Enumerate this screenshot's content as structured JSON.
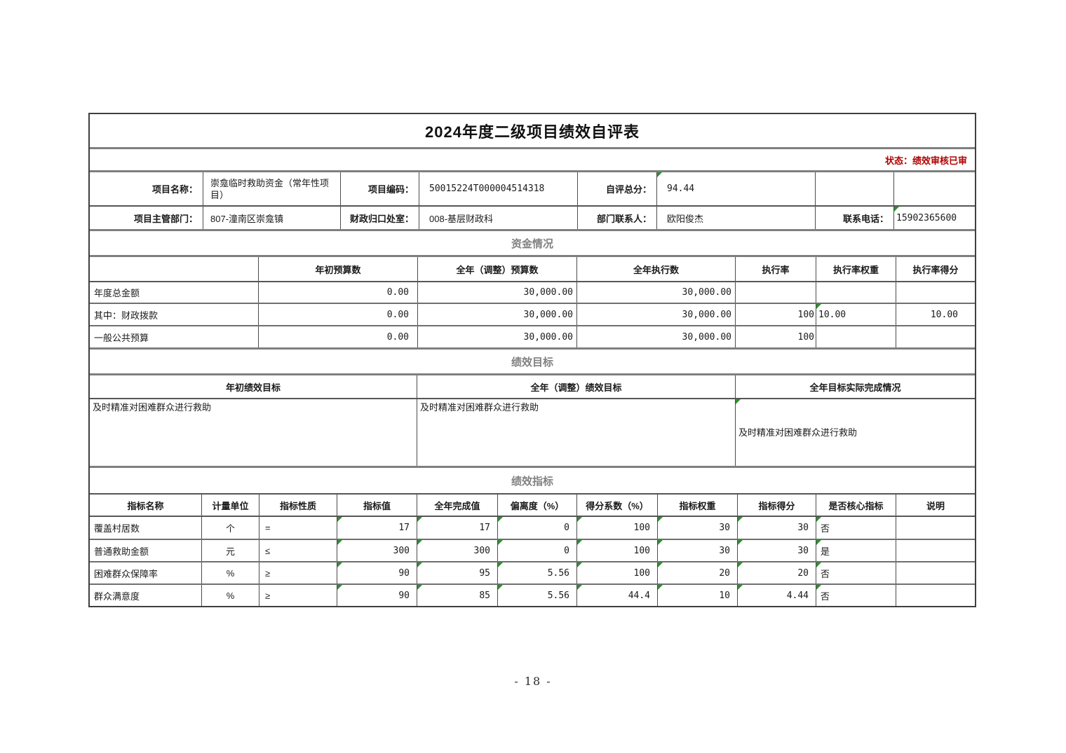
{
  "title": "2024年度二级项目绩效自评表",
  "status": "状态：绩效审核已审",
  "page_number": "- 18 -",
  "colors": {
    "status_red": "#B00000",
    "section_gray": "#808080",
    "triangle_green": "#2F8F2F"
  },
  "info": {
    "project_name_label": "项目名称：",
    "project_name": "崇龛临时救助资金（常年性项目）",
    "project_code_label": "项目编码：",
    "project_code": "50015224T000004514318",
    "self_score_label": "自评总分：",
    "self_score": "94.44",
    "dept_label": "项目主管部门：",
    "dept": "807-潼南区崇龛镇",
    "finance_office_label": "财政归口处室：",
    "finance_office": "008-基层财政科",
    "contact_label": "部门联系人：",
    "contact": "欧阳俊杰",
    "phone_label": "联系电话：",
    "phone": "15902365600"
  },
  "funding": {
    "section_title": "资金情况",
    "headers": [
      "",
      "年初预算数",
      "全年（调整）预算数",
      "全年执行数",
      "执行率",
      "执行率权重",
      "执行率得分"
    ],
    "rows": [
      {
        "label": "年度总金额",
        "values": [
          "0.00",
          "30,000.00",
          "30,000.00",
          "",
          "",
          ""
        ]
      },
      {
        "label": "其中：财政拨款",
        "values": [
          "0.00",
          "30,000.00",
          "30,000.00",
          "100",
          "10.00",
          "10.00"
        ]
      },
      {
        "label": "一般公共预算",
        "values": [
          "0.00",
          "30,000.00",
          "30,000.00",
          "100",
          "",
          ""
        ]
      }
    ]
  },
  "goals": {
    "section_title": "绩效目标",
    "headers": [
      "年初绩效目标",
      "全年（调整）绩效目标",
      "全年目标实际完成情况"
    ],
    "values": [
      "及时精准对困难群众进行救助",
      "及时精准对困难群众进行救助",
      "及时精准对困难群众进行救助"
    ]
  },
  "indicators": {
    "section_title": "绩效指标",
    "headers": [
      "指标名称",
      "计量单位",
      "指标性质",
      "指标值",
      "全年完成值",
      "偏离度（%）",
      "得分系数（%）",
      "指标权重",
      "指标得分",
      "是否核心指标",
      "说明"
    ],
    "rows": [
      [
        "覆盖村居数",
        "个",
        "=",
        "17",
        "17",
        "0",
        "100",
        "30",
        "30",
        "否",
        ""
      ],
      [
        "普通救助金额",
        "元",
        "≤",
        "300",
        "300",
        "0",
        "100",
        "30",
        "30",
        "是",
        ""
      ],
      [
        "困难群众保障率",
        "%",
        "≥",
        "90",
        "95",
        "5.56",
        "100",
        "20",
        "20",
        "否",
        ""
      ],
      [
        "群众满意度",
        "%",
        "≥",
        "90",
        "85",
        "5.56",
        "44.4",
        "10",
        "4.44",
        "否",
        ""
      ]
    ]
  }
}
